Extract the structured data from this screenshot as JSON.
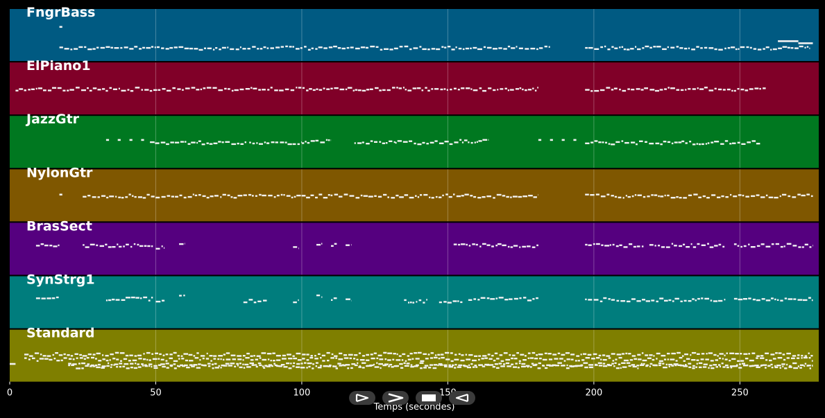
{
  "chart_data": {
    "type": "piano-roll",
    "xlabel": "Temps (secondes)",
    "xlim": [
      0,
      277
    ],
    "xticks": [
      0,
      50,
      100,
      150,
      200,
      250
    ],
    "grid": true,
    "tracks": [
      {
        "name": "FngrBass",
        "color": "#005a82",
        "pitch_range": [
          0,
          10
        ],
        "notes": [
          {
            "start": 17.0,
            "dur": 1.0,
            "pitch": 7.0
          },
          {
            "start": 17.0,
            "dur": 168.0,
            "pitch": 2.0,
            "dense": true
          },
          {
            "start": 197.0,
            "dur": 77.0,
            "pitch": 2.0,
            "dense": true
          },
          {
            "start": 263.0,
            "dur": 7.0,
            "pitch": 3.5
          },
          {
            "start": 270.0,
            "dur": 5.0,
            "pitch": 3.0
          }
        ]
      },
      {
        "name": "ElPiano1",
        "color": "#800028",
        "pitch_range": [
          0,
          10
        ],
        "notes": [
          {
            "start": 2.0,
            "dur": 179.0,
            "pitch": 5.0,
            "dense": true
          },
          {
            "start": 197.0,
            "dur": 62.0,
            "pitch": 5.0,
            "dense": true
          }
        ]
      },
      {
        "name": "JazzGtr",
        "color": "#007820",
        "pitch_range": [
          0,
          10
        ],
        "notes": [
          {
            "start": 33.0,
            "dur": 1.0,
            "pitch": 5.5
          },
          {
            "start": 37.0,
            "dur": 1.0,
            "pitch": 5.5
          },
          {
            "start": 41.0,
            "dur": 1.0,
            "pitch": 5.5
          },
          {
            "start": 45.0,
            "dur": 1.0,
            "pitch": 5.5
          },
          {
            "start": 48.0,
            "dur": 33.0,
            "pitch": 5.0,
            "dense": true
          },
          {
            "start": 82.0,
            "dur": 18.0,
            "pitch": 5.0,
            "dense": true
          },
          {
            "start": 100.0,
            "dur": 10.0,
            "pitch": 5.3,
            "dense": true
          },
          {
            "start": 118.0,
            "dur": 14.0,
            "pitch": 5.0,
            "dense": true
          },
          {
            "start": 132.0,
            "dur": 22.0,
            "pitch": 5.0,
            "dense": true
          },
          {
            "start": 154.0,
            "dur": 10.0,
            "pitch": 5.3,
            "dense": true
          },
          {
            "start": 181.0,
            "dur": 1.0,
            "pitch": 5.5
          },
          {
            "start": 185.0,
            "dur": 1.0,
            "pitch": 5.5
          },
          {
            "start": 189.0,
            "dur": 1.0,
            "pitch": 5.5
          },
          {
            "start": 193.0,
            "dur": 1.0,
            "pitch": 5.5
          },
          {
            "start": 197.0,
            "dur": 33.0,
            "pitch": 5.0,
            "dense": true
          },
          {
            "start": 230.0,
            "dur": 27.0,
            "pitch": 5.0,
            "dense": true
          }
        ]
      },
      {
        "name": "NylonGtr",
        "color": "#7f5700",
        "pitch_range": [
          0,
          10
        ],
        "notes": [
          {
            "start": 17.0,
            "dur": 1.0,
            "pitch": 5.2
          },
          {
            "start": 25.0,
            "dur": 156.0,
            "pitch": 5.0,
            "dense": true
          },
          {
            "start": 197.0,
            "dur": 78.0,
            "pitch": 5.0,
            "dense": true
          }
        ]
      },
      {
        "name": "BrasSect",
        "color": "#55007f",
        "pitch_range": [
          0,
          10
        ],
        "notes": [
          {
            "start": 9.0,
            "dur": 8.0,
            "pitch": 6.0,
            "dense": true
          },
          {
            "start": 25.0,
            "dur": 24.0,
            "pitch": 6.0,
            "dense": true
          },
          {
            "start": 50.0,
            "dur": 3.0,
            "pitch": 5.5,
            "dense": true
          },
          {
            "start": 58.0,
            "dur": 2.0,
            "pitch": 6.5,
            "dense": true
          },
          {
            "start": 97.0,
            "dur": 2.0,
            "pitch": 5.5,
            "dense": true
          },
          {
            "start": 105.0,
            "dur": 2.0,
            "pitch": 6.5,
            "dense": true
          },
          {
            "start": 110.0,
            "dur": 2.0,
            "pitch": 6.0,
            "dense": true
          },
          {
            "start": 115.0,
            "dur": 2.0,
            "pitch": 6.0,
            "dense": true
          },
          {
            "start": 152.0,
            "dur": 15.0,
            "pitch": 6.0,
            "dense": true
          },
          {
            "start": 167.0,
            "dur": 14.0,
            "pitch": 6.0,
            "dense": true
          },
          {
            "start": 197.0,
            "dur": 20.0,
            "pitch": 6.0,
            "dense": true
          },
          {
            "start": 219.0,
            "dur": 26.0,
            "pitch": 6.0,
            "dense": true
          },
          {
            "start": 248.0,
            "dur": 27.0,
            "pitch": 6.0,
            "dense": true
          }
        ]
      },
      {
        "name": "SynStrg1",
        "color": "#007d7d",
        "pitch_range": [
          0,
          10
        ],
        "notes": [
          {
            "start": 9.0,
            "dur": 8.0,
            "pitch": 6.0,
            "dense": true
          },
          {
            "start": 33.0,
            "dur": 16.0,
            "pitch": 6.0,
            "dense": true
          },
          {
            "start": 50.0,
            "dur": 3.0,
            "pitch": 5.5,
            "dense": true
          },
          {
            "start": 58.0,
            "dur": 2.0,
            "pitch": 6.5,
            "dense": true
          },
          {
            "start": 80.0,
            "dur": 8.0,
            "pitch": 5.5,
            "dense": true
          },
          {
            "start": 97.0,
            "dur": 2.0,
            "pitch": 5.5,
            "dense": true
          },
          {
            "start": 105.0,
            "dur": 2.0,
            "pitch": 6.5,
            "dense": true
          },
          {
            "start": 110.0,
            "dur": 2.0,
            "pitch": 6.0,
            "dense": true
          },
          {
            "start": 115.0,
            "dur": 2.0,
            "pitch": 6.0,
            "dense": true
          },
          {
            "start": 135.0,
            "dur": 8.0,
            "pitch": 5.5,
            "dense": true
          },
          {
            "start": 147.0,
            "dur": 8.0,
            "pitch": 5.5,
            "dense": true
          },
          {
            "start": 157.0,
            "dur": 24.0,
            "pitch": 6.0,
            "dense": true
          },
          {
            "start": 197.0,
            "dur": 48.0,
            "pitch": 5.8,
            "dense": true
          },
          {
            "start": 248.0,
            "dur": 27.0,
            "pitch": 6.0,
            "dense": true
          }
        ]
      },
      {
        "name": "Standard",
        "color": "#7f7f00",
        "pitch_range": [
          0,
          10
        ],
        "notes": [
          {
            "start": 0.0,
            "dur": 2.0,
            "pitch": 3.0
          },
          {
            "start": 5.0,
            "dur": 270.0,
            "pitch": 5.5,
            "dense": true
          },
          {
            "start": 5.0,
            "dur": 270.0,
            "pitch": 4.3,
            "dense": true
          },
          {
            "start": 20.0,
            "dur": 255.0,
            "pitch": 3.0,
            "dense": true
          },
          {
            "start": 20.0,
            "dur": 255.0,
            "pitch": 2.5,
            "dense": true
          }
        ]
      }
    ]
  },
  "player": {
    "buttons": [
      {
        "name": "play-button",
        "icon": "play-icon"
      },
      {
        "name": "fast-forward-button",
        "icon": "fast-forward-icon"
      },
      {
        "name": "stop-button",
        "icon": "stop-icon"
      },
      {
        "name": "rewind-button",
        "icon": "rewind-icon"
      }
    ]
  }
}
